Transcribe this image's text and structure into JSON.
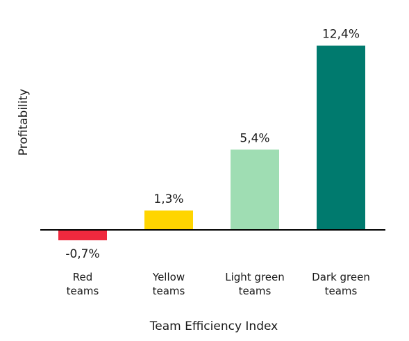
{
  "chart_data": {
    "type": "bar",
    "xlabel": "Team Efficiency Index",
    "ylabel": "Profitability",
    "categories": [
      [
        "Red",
        "teams"
      ],
      [
        "Yellow",
        "teams"
      ],
      [
        "Light green",
        "teams"
      ],
      [
        "Dark green",
        "teams"
      ]
    ],
    "values": [
      -0.7,
      1.3,
      5.4,
      12.4
    ],
    "value_labels": [
      "-0,7%",
      "1,3%",
      "5,4%",
      "12,4%"
    ],
    "colors": [
      "#f0293e",
      "#ffd500",
      "#9fddb3",
      "#007a6e"
    ],
    "baseline_color": "#000000",
    "grid": false,
    "legend": "none"
  }
}
